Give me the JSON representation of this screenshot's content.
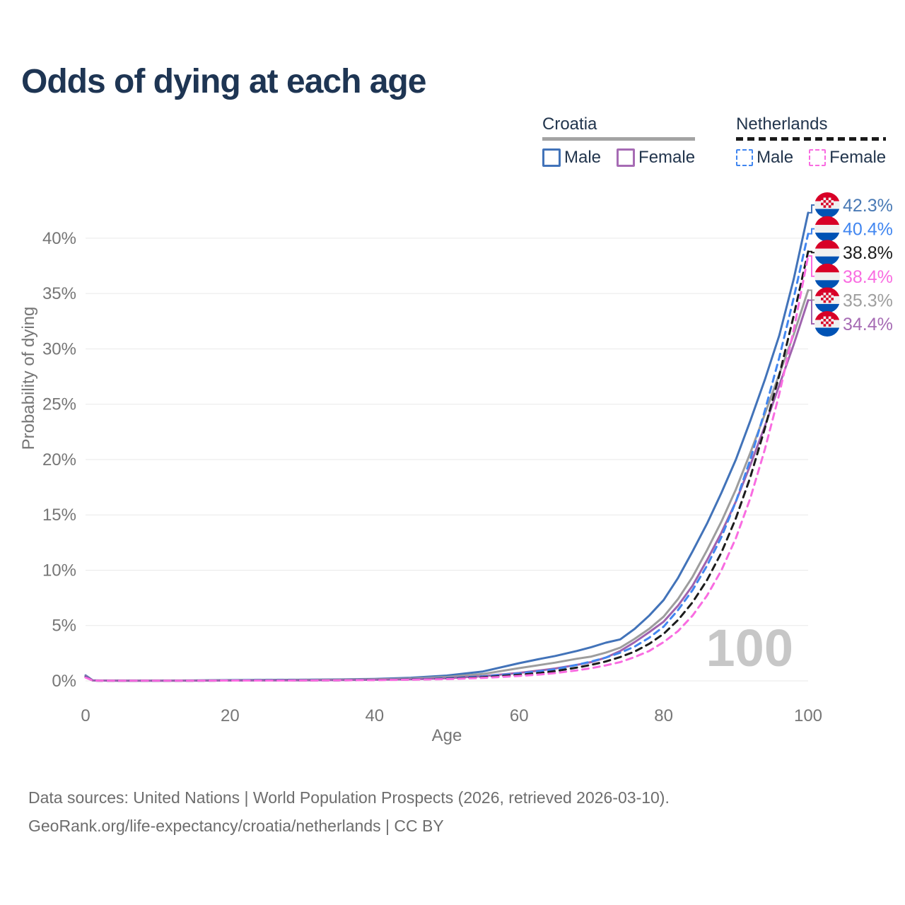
{
  "title": "Odds of dying at each age",
  "legend": {
    "groups": [
      {
        "name": "Croatia",
        "line_style": "solid",
        "underline_color": "#a3a3a3",
        "items": [
          {
            "label": "Male",
            "color": "#4273b9",
            "dashed": false
          },
          {
            "label": "Female",
            "color": "#a66bb4",
            "dashed": false
          }
        ]
      },
      {
        "name": "Netherlands",
        "line_style": "dashed",
        "underline_color": "#1a1a1a",
        "items": [
          {
            "label": "Male",
            "color": "#4186f0",
            "dashed": true
          },
          {
            "label": "Female",
            "color": "#f96ce1",
            "dashed": true
          }
        ]
      }
    ]
  },
  "chart_data": {
    "type": "line",
    "title": "Odds of dying at each age",
    "xlabel": "Age",
    "ylabel": "Probability of dying",
    "x_ticks": [
      0,
      20,
      40,
      60,
      80,
      100
    ],
    "y_ticks": [
      "0%",
      "5%",
      "10%",
      "15%",
      "20%",
      "25%",
      "30%",
      "35%",
      "40%"
    ],
    "y_tick_step_pct": 5,
    "xlim": [
      0,
      100
    ],
    "ylim_pct": [
      0,
      44
    ],
    "grid": "horizontal",
    "hover_age_watermark": "100",
    "watermark_color": "#c7c7c7",
    "grid_color": "#e9e9e9",
    "axis_text_color": "#767676",
    "ages": [
      0,
      1,
      2,
      5,
      10,
      15,
      20,
      25,
      30,
      35,
      40,
      45,
      50,
      55,
      60,
      63,
      65,
      68,
      70,
      72,
      74,
      76,
      78,
      80,
      82,
      84,
      86,
      88,
      90,
      92,
      94,
      96,
      98,
      100
    ],
    "series": [
      {
        "key": "croatia_male",
        "name": "Croatia Male",
        "country": "Croatia",
        "sex": "Male",
        "color": "#4273b9",
        "dashed": false,
        "values_pct": [
          0.5,
          0.05,
          0.03,
          0.02,
          0.02,
          0.04,
          0.07,
          0.09,
          0.1,
          0.13,
          0.18,
          0.28,
          0.48,
          0.85,
          1.6,
          2.0,
          2.25,
          2.7,
          3.05,
          3.45,
          3.75,
          4.7,
          5.9,
          7.3,
          9.3,
          11.7,
          14.2,
          17.0,
          20.0,
          23.5,
          27.2,
          31.2,
          36.3,
          42.3
        ]
      },
      {
        "key": "croatia_both",
        "name": "Croatia Both sexes",
        "country": "Croatia",
        "sex": "Both",
        "color": "#9d9d9d",
        "dashed": false,
        "values_pct": [
          0.45,
          0.04,
          0.03,
          0.02,
          0.02,
          0.03,
          0.05,
          0.06,
          0.08,
          0.1,
          0.14,
          0.21,
          0.35,
          0.62,
          1.15,
          1.45,
          1.65,
          2.0,
          2.2,
          2.55,
          3.0,
          3.8,
          4.7,
          5.8,
          7.4,
          9.4,
          11.8,
          14.4,
          17.3,
          20.6,
          24.1,
          27.7,
          31.3,
          35.3
        ]
      },
      {
        "key": "croatia_female",
        "name": "Croatia Female",
        "country": "Croatia",
        "sex": "Female",
        "color": "#9f63ae",
        "dashed": false,
        "values_pct": [
          0.42,
          0.04,
          0.03,
          0.02,
          0.02,
          0.02,
          0.03,
          0.04,
          0.05,
          0.07,
          0.1,
          0.15,
          0.24,
          0.42,
          0.72,
          0.95,
          1.12,
          1.45,
          1.7,
          2.1,
          2.7,
          3.5,
          4.4,
          5.35,
          6.8,
          8.6,
          10.9,
          13.4,
          16.2,
          19.5,
          23.0,
          26.7,
          30.4,
          34.4
        ]
      },
      {
        "key": "netherlands_male",
        "name": "Netherlands Male",
        "country": "Netherlands",
        "sex": "Male",
        "color": "#4186f0",
        "dashed": true,
        "values_pct": [
          0.36,
          0.03,
          0.02,
          0.01,
          0.01,
          0.02,
          0.04,
          0.05,
          0.05,
          0.06,
          0.09,
          0.14,
          0.23,
          0.4,
          0.67,
          0.88,
          1.05,
          1.45,
          1.75,
          2.1,
          2.55,
          3.1,
          3.9,
          4.9,
          6.4,
          8.2,
          10.4,
          13.0,
          16.2,
          20.0,
          24.4,
          29.2,
          34.6,
          40.4
        ]
      },
      {
        "key": "netherlands_both",
        "name": "Netherlands Both sexes",
        "country": "Netherlands",
        "sex": "Both",
        "color": "#1c1c1c",
        "dashed": true,
        "values_pct": [
          0.33,
          0.03,
          0.02,
          0.01,
          0.01,
          0.02,
          0.03,
          0.04,
          0.04,
          0.05,
          0.08,
          0.12,
          0.19,
          0.33,
          0.55,
          0.72,
          0.88,
          1.2,
          1.45,
          1.75,
          2.15,
          2.65,
          3.35,
          4.25,
          5.5,
          7.1,
          9.1,
          11.6,
          14.7,
          18.4,
          22.8,
          27.6,
          33.0,
          38.8
        ]
      },
      {
        "key": "netherlands_female",
        "name": "Netherlands Female",
        "country": "Netherlands",
        "sex": "Female",
        "color": "#f96ce1",
        "dashed": true,
        "values_pct": [
          0.3,
          0.03,
          0.02,
          0.01,
          0.01,
          0.02,
          0.03,
          0.03,
          0.04,
          0.05,
          0.07,
          0.1,
          0.16,
          0.27,
          0.45,
          0.58,
          0.7,
          0.95,
          1.15,
          1.4,
          1.7,
          2.15,
          2.7,
          3.5,
          4.5,
          5.9,
          7.7,
          10.0,
          12.9,
          16.5,
          20.9,
          25.9,
          31.7,
          38.4
        ]
      }
    ],
    "end_labels": [
      {
        "text": "42.3%",
        "series": "croatia_male",
        "flag": "croatia",
        "color": "#4a7ab5"
      },
      {
        "text": "40.4%",
        "series": "netherlands_male",
        "flag": "netherlands",
        "color": "#4186f0"
      },
      {
        "text": "38.8%",
        "series": "netherlands_both",
        "flag": "netherlands",
        "color": "#1c1c1c"
      },
      {
        "text": "38.4%",
        "series": "netherlands_female",
        "flag": "netherlands",
        "color": "#f96ce1"
      },
      {
        "text": "35.3%",
        "series": "croatia_both",
        "flag": "croatia",
        "color": "#9e9e9e"
      },
      {
        "text": "34.4%",
        "series": "croatia_female",
        "flag": "croatia",
        "color": "#a66bb4"
      }
    ],
    "flag_colors": {
      "red": "#d80027",
      "white": "#f0f0f0",
      "blue": "#0052b4"
    }
  },
  "footer": {
    "line1": "Data sources: United Nations | World Population Prospects (2026, retrieved 2026-03-10).",
    "line2": "GeoRank.org/life-expectancy/croatia/netherlands | CC BY"
  }
}
